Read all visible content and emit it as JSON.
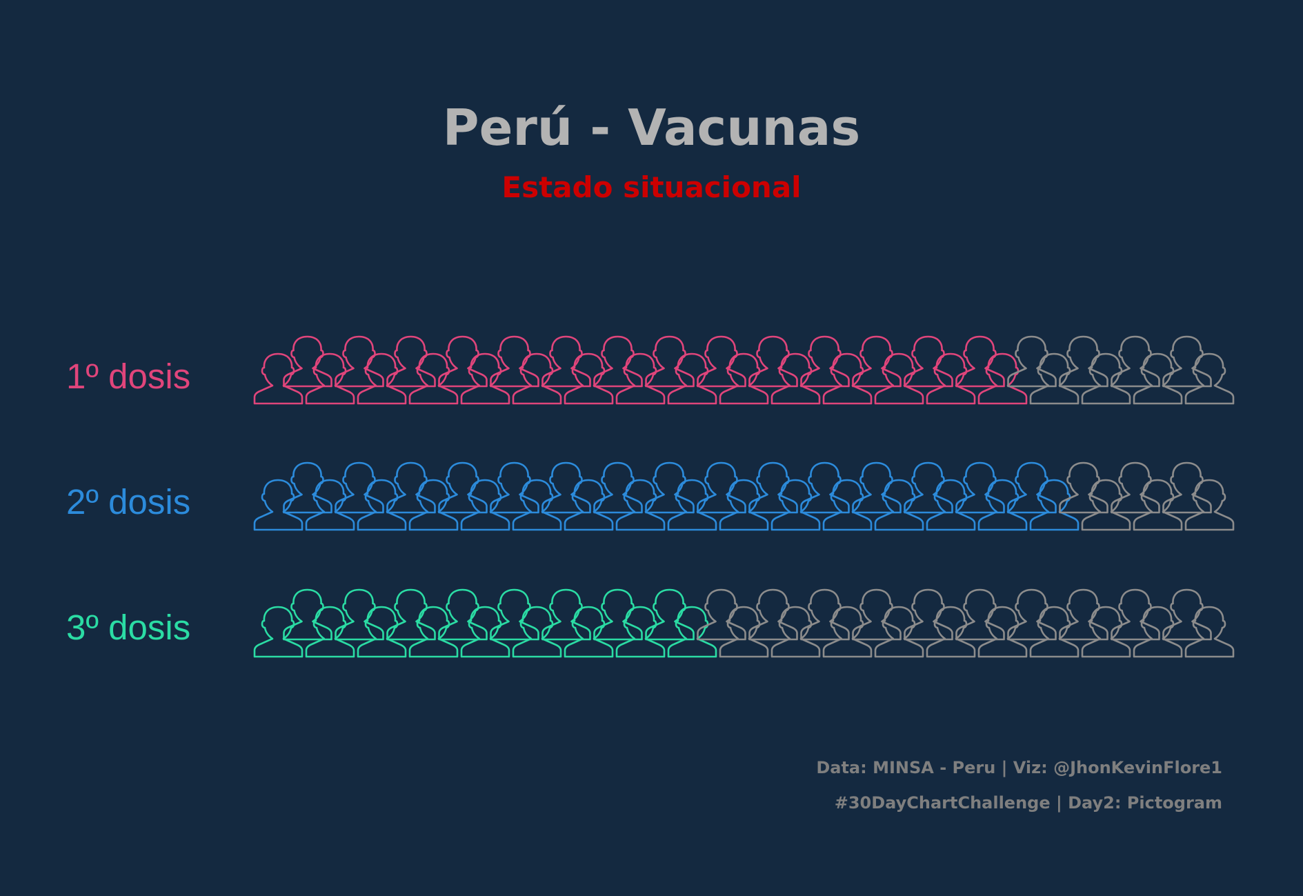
{
  "title": "Perú - Vacunas",
  "subtitle": "Estado situacional",
  "caption": {
    "line1": "Data: MINSA - Peru | Viz: @JhonKevinFlore1",
    "line2": "#30DayChartChallenge | Day2: Pictogram"
  },
  "colors": {
    "background": "#142940",
    "title": "#b3b3b3",
    "subtitle": "#cc0000",
    "remaining": "#8c8c8c",
    "caption": "#7f7f7f"
  },
  "chart_data": {
    "type": "pictogram",
    "icon": "person-bust-outline-icon",
    "total_icons": 37,
    "categories": [
      "1º dosis",
      "2º dosis",
      "3º dosis"
    ],
    "series": [
      {
        "label": "1º dosis",
        "filled": 29,
        "color": "#e0457b"
      },
      {
        "label": "2º dosis",
        "filled": 31,
        "color": "#2c8bdb"
      },
      {
        "label": "3º dosis",
        "filled": 17,
        "color": "#2bdca4"
      }
    ]
  }
}
